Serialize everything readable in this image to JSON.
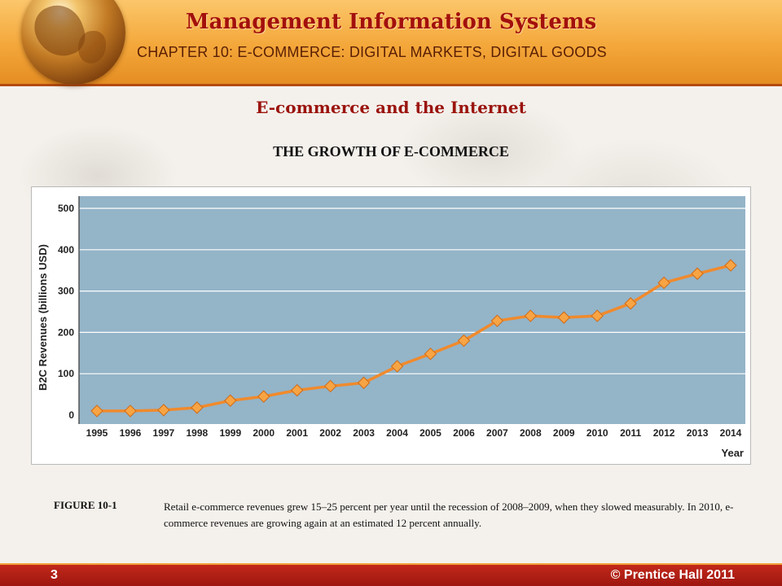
{
  "header": {
    "title": "Management Information Systems",
    "subtitle": "CHAPTER 10: E-COMMERCE: DIGITAL MARKETS, DIGITAL GOODS"
  },
  "section_title": "E-commerce and the Internet",
  "chart_heading": "THE GROWTH OF E-COMMERCE",
  "caption": {
    "label": "FIGURE 10-1",
    "text": "Retail e-commerce revenues grew 15–25 percent per year until the recession of 2008–2009, when they slowed measurably. In 2010, e-commerce revenues are growing again at an estimated 12 percent annually."
  },
  "footer": {
    "page_number": "3",
    "copyright": "© Prentice Hall 2011"
  },
  "colors": {
    "plot_background": "#94b4c8",
    "line": "#f08a2c",
    "marker": "#f7a444",
    "header_title": "#a3100c",
    "section_title": "#9b140e",
    "footer": "#b01f14"
  },
  "chart_data": {
    "type": "line",
    "title": "",
    "xlabel": "Year",
    "ylabel": "B2C Revenues (billions USD)",
    "x": [
      "1995",
      "1996",
      "1997",
      "1998",
      "1999",
      "2000",
      "2001",
      "2002",
      "2003",
      "2004",
      "2005",
      "2006",
      "2007",
      "2008",
      "2009",
      "2010",
      "2011",
      "2012",
      "2013",
      "2014"
    ],
    "series": [
      {
        "values": [
          10,
          10,
          12,
          18,
          35,
          45,
          60,
          70,
          78,
          118,
          148,
          180,
          228,
          240,
          236,
          240,
          270,
          320,
          342,
          362
        ]
      }
    ],
    "ylim": [
      0,
      500
    ],
    "yticks": [
      0,
      100,
      200,
      300,
      400,
      500
    ],
    "grid": true,
    "legend": "none"
  }
}
